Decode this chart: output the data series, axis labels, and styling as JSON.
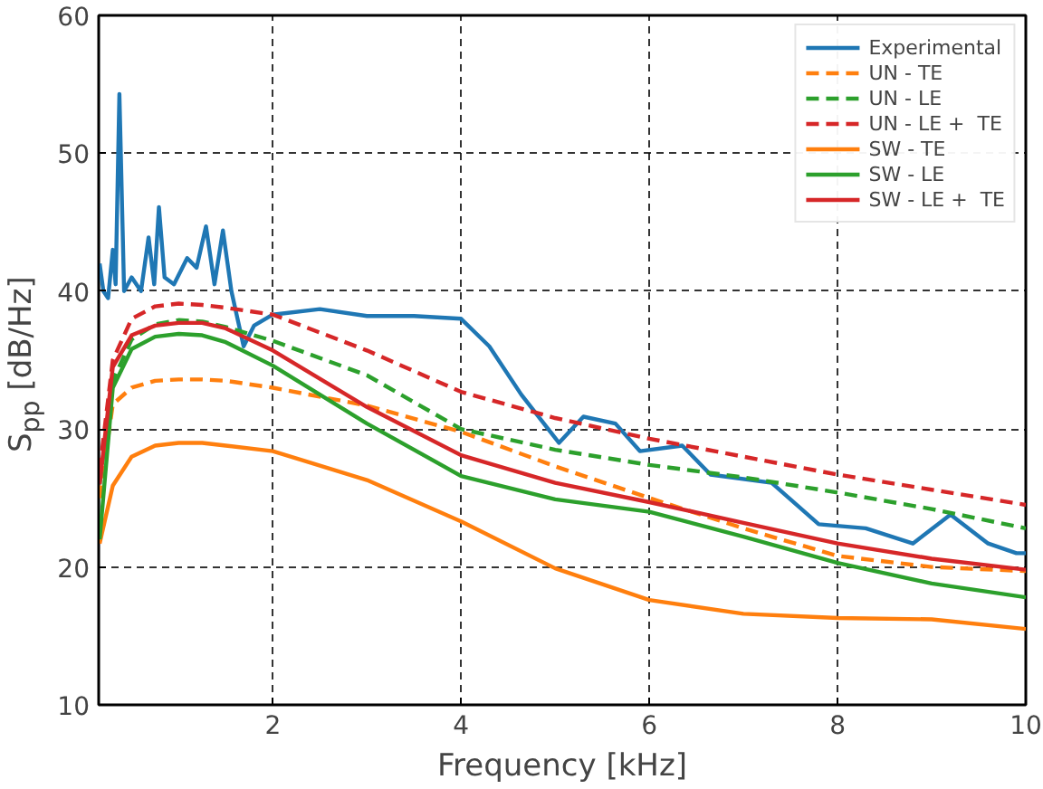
{
  "chart_data": {
    "type": "line",
    "xlabel": "Frequency [kHz]",
    "ylabel": "S$_{pp}$ [dB/Hz]",
    "xlim": [
      0.15,
      10
    ],
    "ylim": [
      10,
      60
    ],
    "xticks": [
      2,
      4,
      6,
      8,
      10
    ],
    "yticks": [
      10,
      20,
      30,
      40,
      50,
      60
    ],
    "grid": true,
    "legend": "top right",
    "line_style": "solid",
    "x": [
      0.16,
      0.3,
      0.5,
      0.75,
      1.0,
      1.25,
      1.5,
      2,
      3,
      4,
      5,
      6,
      7,
      8,
      9,
      10
    ],
    "series": [
      {
        "name": "Experimental",
        "color": "#1f77b4",
        "x": [
          0.16,
          0.2,
          0.25,
          0.3,
          0.33,
          0.37,
          0.42,
          0.5,
          0.6,
          0.68,
          0.74,
          0.79,
          0.85,
          0.95,
          1.09,
          1.19,
          1.29,
          1.38,
          1.47,
          1.56,
          1.69,
          1.8,
          2,
          2.5,
          3,
          3.5,
          4,
          4.3,
          4.64,
          5.04,
          5.3,
          5.64,
          5.9,
          6.35,
          6.65,
          7.3,
          7.8,
          8.3,
          8.8,
          9.2,
          9.6,
          9.9,
          10
        ],
        "values": [
          42,
          40,
          39.5,
          43,
          40.5,
          54.3,
          40,
          41,
          40,
          43.9,
          40.5,
          46.1,
          41,
          40.5,
          42.4,
          41.7,
          44.7,
          40.5,
          44.4,
          40,
          36,
          37.5,
          38.3,
          38.7,
          38.2,
          38.2,
          38.0,
          36,
          32.5,
          29.0,
          30.9,
          30.4,
          28.4,
          28.8,
          26.7,
          26.1,
          23.1,
          22.8,
          21.7,
          23.8,
          21.7,
          21.0,
          21.0
        ]
      },
      {
        "name": "UN - TE",
        "color": "#ff7f0e",
        "line_style": "dashed",
        "values": [
          25,
          31.8,
          33.0,
          33.5,
          33.6,
          33.6,
          33.5,
          33.0,
          31.7,
          29.8,
          27.3,
          25.0,
          22.8,
          20.8,
          20.0,
          19.7
        ]
      },
      {
        "name": "UN - LE",
        "color": "#2ca02c",
        "line_style": "dashed",
        "values": [
          26,
          33.5,
          36.5,
          37.6,
          37.9,
          37.8,
          37.4,
          36.4,
          33.9,
          30.0,
          28.5,
          27.4,
          26.5,
          25.4,
          24.2,
          22.8
        ]
      },
      {
        "name": "UN - LE +  TE",
        "color": "#d62728",
        "line_style": "dashed",
        "values": [
          27,
          35,
          38,
          38.9,
          39.1,
          39.0,
          38.8,
          38.3,
          35.7,
          32.7,
          30.8,
          29.3,
          28.0,
          26.7,
          25.6,
          24.5
        ]
      },
      {
        "name": "SW - TE",
        "color": "#ff7f0e",
        "values": [
          21.7,
          25.9,
          28.0,
          28.8,
          29.0,
          29.0,
          28.8,
          28.4,
          26.3,
          23.3,
          19.9,
          17.6,
          16.6,
          16.3,
          16.2,
          15.5
        ]
      },
      {
        "name": "SW - LE",
        "color": "#2ca02c",
        "values": [
          22,
          33,
          35.8,
          36.7,
          36.9,
          36.8,
          36.3,
          34.6,
          30.4,
          26.6,
          24.9,
          24.0,
          22.2,
          20.3,
          18.8,
          17.8
        ]
      },
      {
        "name": "SW - LE +  TE",
        "color": "#d62728",
        "values": [
          26,
          34.5,
          36.8,
          37.5,
          37.7,
          37.7,
          37.3,
          35.7,
          31.6,
          28.1,
          26.1,
          24.7,
          23.2,
          21.7,
          20.6,
          19.8
        ]
      }
    ]
  }
}
